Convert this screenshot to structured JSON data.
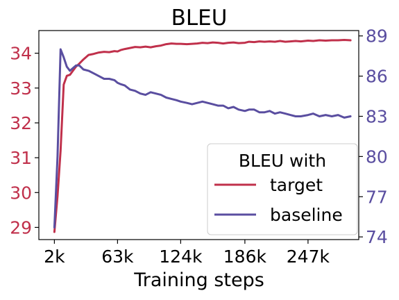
{
  "chart_data": {
    "type": "line",
    "title": "BLEU",
    "xlabel": "Training steps",
    "x_tick_labels": [
      "2k",
      "63k",
      "124k",
      "186k",
      "247k"
    ],
    "x_tick_values": [
      2,
      63,
      124,
      186,
      247
    ],
    "xlim": [
      -13,
      296
    ],
    "y_left": {
      "ylim": [
        28.65,
        34.65
      ],
      "ticks": [
        29,
        30,
        31,
        32,
        33,
        34
      ],
      "color": "#c0304b"
    },
    "y_right": {
      "ylim": [
        73.8,
        89.4
      ],
      "ticks": [
        74,
        77,
        80,
        83,
        86,
        89
      ],
      "color": "#5a4ea0"
    },
    "legend": {
      "title": "BLEU with",
      "placement": "lower-right"
    },
    "series": [
      {
        "name": "target",
        "axis": "left",
        "color": "#c0304b",
        "x": [
          2,
          5,
          8,
          11,
          14,
          17,
          20,
          23,
          26,
          30,
          35,
          40,
          45,
          50,
          55,
          60,
          63,
          66,
          70,
          75,
          80,
          85,
          90,
          95,
          100,
          105,
          110,
          115,
          120,
          124,
          130,
          135,
          140,
          145,
          150,
          155,
          160,
          165,
          170,
          175,
          180,
          186,
          190,
          195,
          200,
          205,
          210,
          215,
          220,
          225,
          230,
          235,
          240,
          247,
          252,
          258,
          264,
          270,
          276,
          282,
          288
        ],
        "y": [
          28.87,
          29.9,
          31.2,
          33.1,
          33.35,
          33.38,
          33.5,
          33.62,
          33.7,
          33.82,
          33.95,
          33.98,
          34.02,
          34.04,
          34.03,
          34.06,
          34.05,
          34.09,
          34.12,
          34.15,
          34.18,
          34.17,
          34.19,
          34.17,
          34.2,
          34.22,
          34.26,
          34.28,
          34.27,
          34.27,
          34.26,
          34.27,
          34.28,
          34.3,
          34.29,
          34.31,
          34.3,
          34.28,
          34.3,
          34.31,
          34.29,
          34.3,
          34.33,
          34.32,
          34.34,
          34.33,
          34.34,
          34.33,
          34.35,
          34.33,
          34.34,
          34.35,
          34.34,
          34.36,
          34.35,
          34.37,
          34.36,
          34.37,
          34.37,
          34.38,
          34.37
        ]
      },
      {
        "name": "baseline",
        "axis": "right",
        "color": "#5a4ea0",
        "x": [
          2,
          5,
          8,
          11,
          14,
          17,
          20,
          23,
          26,
          30,
          35,
          40,
          45,
          50,
          55,
          60,
          63,
          66,
          70,
          75,
          80,
          85,
          90,
          95,
          100,
          105,
          110,
          115,
          120,
          124,
          130,
          135,
          140,
          145,
          150,
          155,
          160,
          165,
          170,
          175,
          180,
          186,
          190,
          195,
          200,
          205,
          210,
          215,
          220,
          225,
          230,
          235,
          240,
          247,
          252,
          258,
          264,
          270,
          276,
          282,
          288
        ],
        "y": [
          74.7,
          80.0,
          88.0,
          87.4,
          86.7,
          86.4,
          86.6,
          86.8,
          86.8,
          86.5,
          86.4,
          86.2,
          86.0,
          85.8,
          85.8,
          85.7,
          85.5,
          85.4,
          85.3,
          85.0,
          84.9,
          84.7,
          84.6,
          84.8,
          84.7,
          84.6,
          84.4,
          84.3,
          84.2,
          84.1,
          84.0,
          83.9,
          84.0,
          84.1,
          84.0,
          83.9,
          83.8,
          83.8,
          83.6,
          83.7,
          83.5,
          83.4,
          83.5,
          83.5,
          83.3,
          83.3,
          83.4,
          83.2,
          83.3,
          83.2,
          83.1,
          83.0,
          83.0,
          83.1,
          83.2,
          83.0,
          83.1,
          83.0,
          83.1,
          82.9,
          83.0
        ]
      }
    ]
  }
}
